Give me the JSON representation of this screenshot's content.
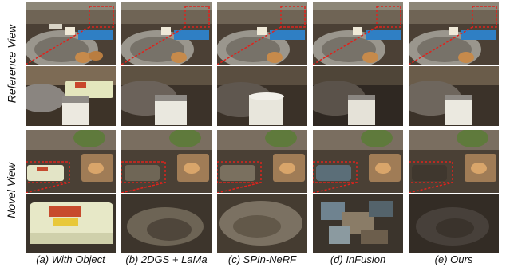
{
  "figure": {
    "row_labels": [
      "Reference View",
      "Novel View"
    ],
    "captions": [
      "(a) With Object",
      "(b) 2DGS + LaMa",
      "(c) SPIn-NeRF",
      "(d) InFusion",
      "(e) Ours"
    ],
    "highlight_color": "#e0221c"
  }
}
